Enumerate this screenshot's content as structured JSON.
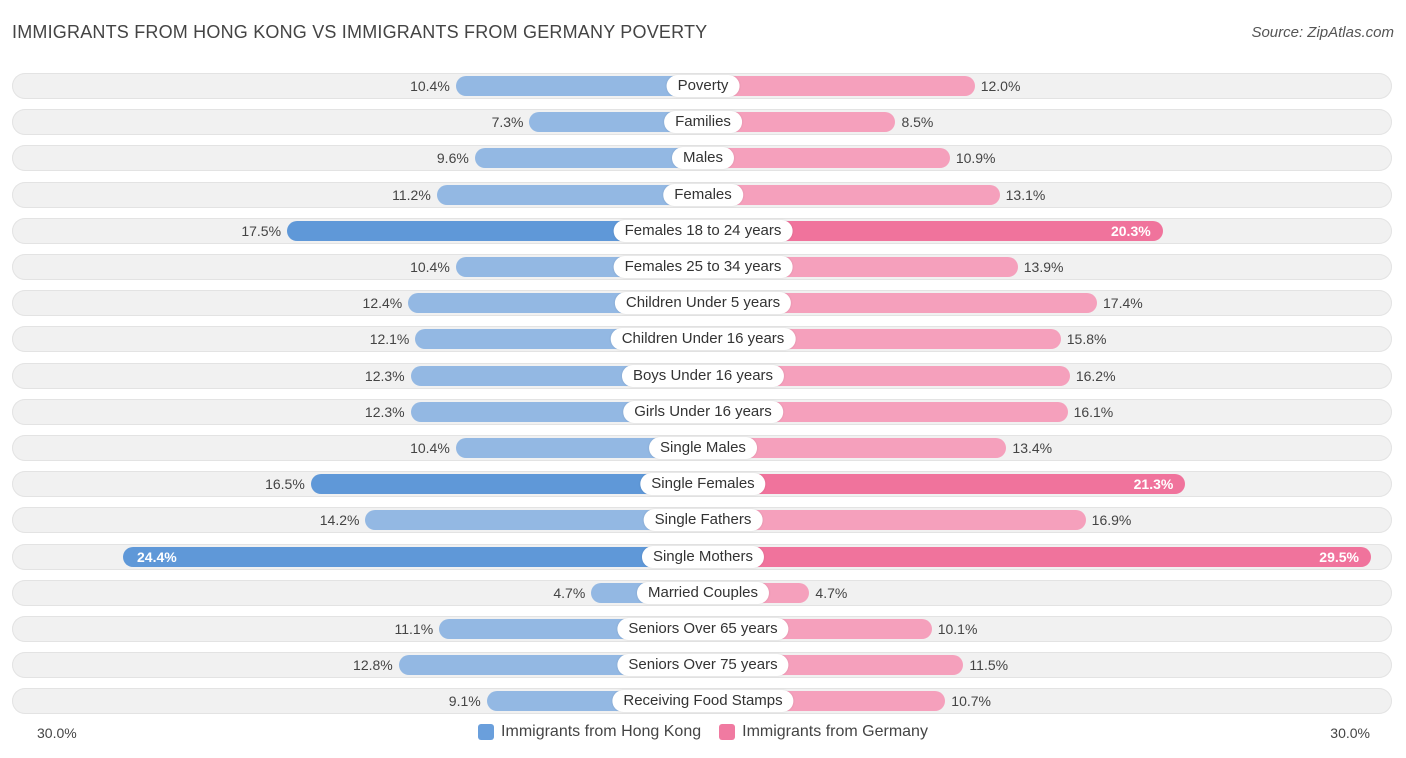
{
  "title": "IMMIGRANTS FROM HONG KONG VS IMMIGRANTS FROM GERMANY POVERTY",
  "source": "Source: ZipAtlas.com",
  "colors": {
    "left_bar": "#93b8e3",
    "left_bar_strong": "#5f98d8",
    "right_bar": "#f5a0bc",
    "right_bar_strong": "#f0739c",
    "legend_left": "#6a9fdc",
    "legend_right": "#f07aa1"
  },
  "chart_data": {
    "type": "bar",
    "orientation": "horizontal-diverging",
    "title": "IMMIGRANTS FROM HONG KONG VS IMMIGRANTS FROM GERMANY POVERTY",
    "unit": "%",
    "xlim": [
      0,
      30
    ],
    "axis_left_label": "30.0%",
    "axis_right_label": "30.0%",
    "categories": [
      "Poverty",
      "Families",
      "Males",
      "Females",
      "Females 18 to 24 years",
      "Females 25 to 34 years",
      "Children Under 5 years",
      "Children Under 16 years",
      "Boys Under 16 years",
      "Girls Under 16 years",
      "Single Males",
      "Single Females",
      "Single Fathers",
      "Single Mothers",
      "Married Couples",
      "Seniors Over 65 years",
      "Seniors Over 75 years",
      "Receiving Food Stamps"
    ],
    "series": [
      {
        "name": "Immigrants from Hong Kong",
        "side": "left",
        "values": [
          10.4,
          7.3,
          9.6,
          11.2,
          17.5,
          10.4,
          12.4,
          12.1,
          12.3,
          12.3,
          10.4,
          16.5,
          14.2,
          24.4,
          4.7,
          11.1,
          12.8,
          9.1
        ],
        "labels": [
          "10.4%",
          "7.3%",
          "9.6%",
          "11.2%",
          "17.5%",
          "10.4%",
          "12.4%",
          "12.1%",
          "12.3%",
          "12.3%",
          "10.4%",
          "16.5%",
          "14.2%",
          "24.4%",
          "4.7%",
          "11.1%",
          "12.8%",
          "9.1%"
        ]
      },
      {
        "name": "Immigrants from Germany",
        "side": "right",
        "values": [
          12.0,
          8.5,
          10.9,
          13.1,
          20.3,
          13.9,
          17.4,
          15.8,
          16.2,
          16.1,
          13.4,
          21.3,
          16.9,
          29.5,
          4.7,
          10.1,
          11.5,
          10.7
        ],
        "labels": [
          "12.0%",
          "8.5%",
          "10.9%",
          "13.1%",
          "20.3%",
          "13.9%",
          "17.4%",
          "15.8%",
          "16.2%",
          "16.1%",
          "13.4%",
          "21.3%",
          "16.9%",
          "29.5%",
          "4.7%",
          "10.1%",
          "11.5%",
          "10.7%"
        ]
      }
    ],
    "legend_position": "bottom-center"
  }
}
